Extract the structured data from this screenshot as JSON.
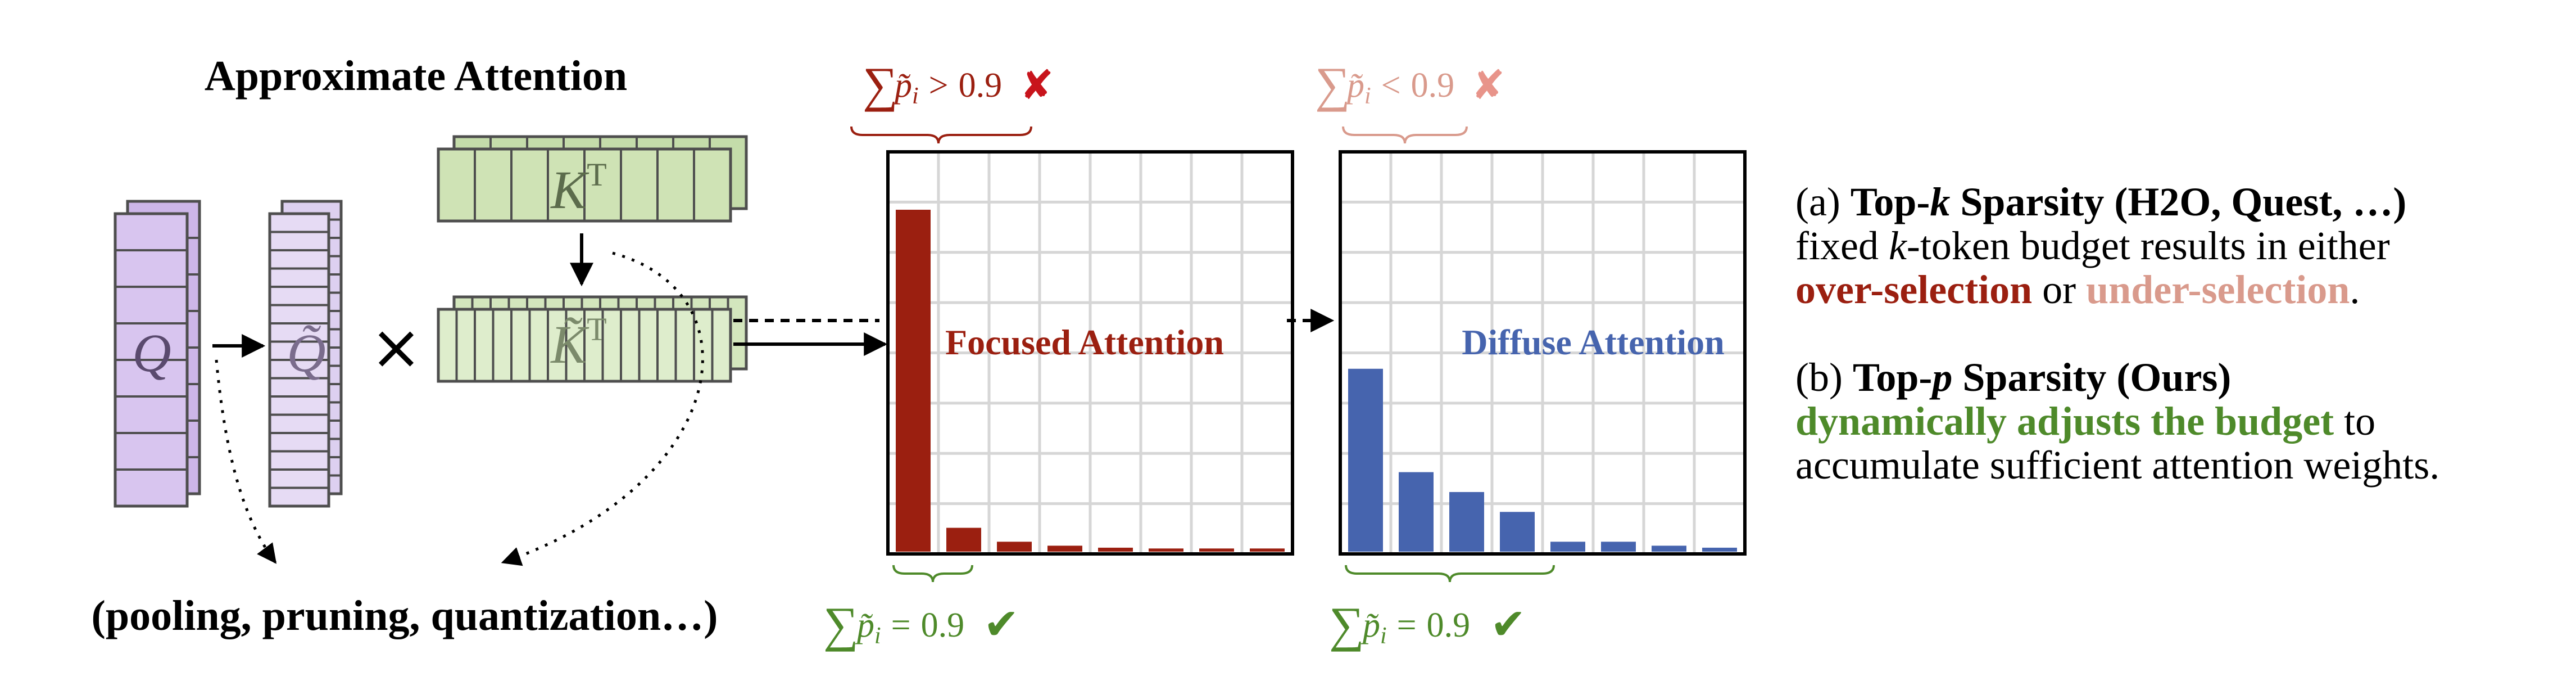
{
  "approx_attention": {
    "title": "Approximate Attention",
    "q_label": "Q",
    "q_tilde_label": "Q̃",
    "times_symbol": "×",
    "kt_label": "K",
    "kt_sup": "T",
    "kt_tilde_label": "K̃",
    "kt_tilde_sup": "T",
    "methods_caption": "(pooling, pruning, quantization…)"
  },
  "colors": {
    "purple_fill": "#d8c5ef",
    "purple_edge": "#4e4e4e",
    "green_fill": "#cfe3b5",
    "green_edge": "#4e4e4e",
    "red_bar": "#9b1f10",
    "blue_bar": "#4664ae",
    "pink": "#d99a8c",
    "green_text": "#4e8a2a"
  },
  "focused": {
    "label": "Focused Attention",
    "top_note": {
      "sum": "∑",
      "p": "p̃",
      "i": "i",
      "rel": ">",
      "val": "0.9",
      "mark": "✘"
    },
    "bottom_note": {
      "sum": "∑",
      "p": "p̃",
      "i": "i",
      "rel": "=",
      "val": "0.9",
      "mark": "✔"
    }
  },
  "diffuse": {
    "label": "Diffuse Attention",
    "top_note": {
      "sum": "∑",
      "p": "p̃",
      "i": "i",
      "rel": "<",
      "val": "0.9",
      "mark": "✘"
    },
    "bottom_note": {
      "sum": "∑",
      "p": "p̃",
      "i": "i",
      "rel": "=",
      "val": "0.9",
      "mark": "✔"
    }
  },
  "side_notes": {
    "a_prefix": "(a) ",
    "a_title_1": "Top-",
    "a_title_k": "k",
    "a_title_2": " Sparsity (H2O, Quest, …)",
    "a_line2_1": "fixed ",
    "a_line2_k": "k",
    "a_line2_2": "-token budget results in either",
    "a_over": "over-selection",
    "a_or": " or ",
    "a_under": "under-selection",
    "a_end": ".",
    "b_prefix": "(b) ",
    "b_title_1": "Top-",
    "b_title_p": "p",
    "b_title_2": " Sparsity (Ours)",
    "b_green": "dynamically adjusts the budget",
    "b_to": " to",
    "b_line3": "accumulate sufficient attention weights."
  },
  "chart_data": [
    {
      "type": "bar",
      "name": "Focused Attention",
      "values": [
        0.86,
        0.06,
        0.025,
        0.015,
        0.01,
        0.008,
        0.008,
        0.008
      ],
      "ylim": [
        0,
        1
      ]
    },
    {
      "type": "bar",
      "name": "Diffuse Attention",
      "values": [
        0.46,
        0.2,
        0.15,
        0.1,
        0.025,
        0.025,
        0.015,
        0.01
      ],
      "ylim": [
        0,
        1
      ]
    }
  ]
}
